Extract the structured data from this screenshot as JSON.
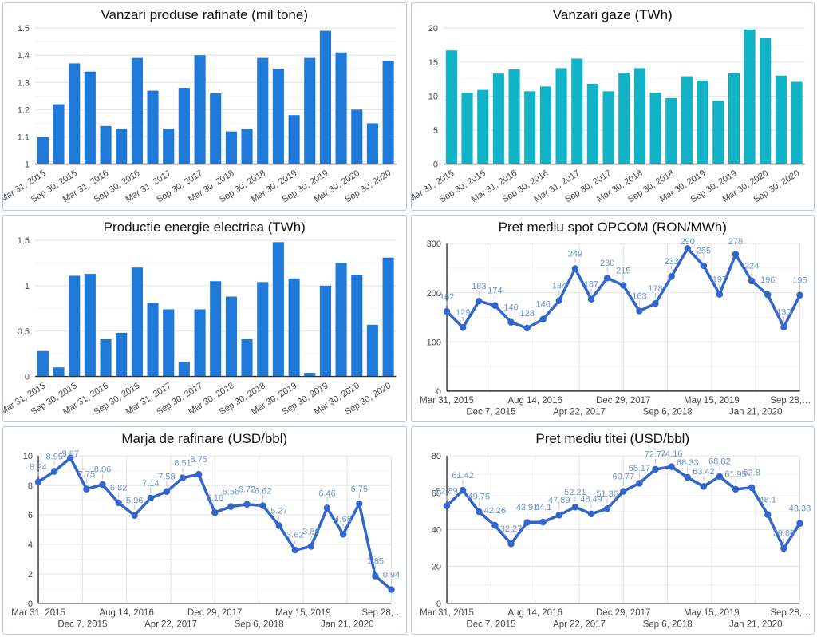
{
  "style": {
    "panel_border": "#bac8da",
    "title_color": "#131313",
    "axis_text": "#45494e",
    "axis_line": "#333333",
    "grid_major": "#e3e3e3",
    "grid_minor": "#f4f4f4",
    "annotation_text": "#6d93c9",
    "annotation_stem": "#b6c6de",
    "bar_blue": "#1e79d9",
    "bar_teal": "#10b4c6",
    "line_blue": "#3366cc"
  },
  "chart_data": [
    {
      "id": "vanzari-produse-rafinate",
      "type": "bar",
      "title": "Vanzari produse rafinate (mil tone)",
      "color": "#1e79d9",
      "ylim": [
        1,
        1.5
      ],
      "y_ticks": [
        "1",
        "1.1",
        "1.2",
        "1.3",
        "1.4",
        "1.5"
      ],
      "grid": true,
      "values": [
        1.1,
        1.22,
        1.37,
        1.34,
        1.14,
        1.13,
        1.39,
        1.27,
        1.13,
        1.28,
        1.4,
        1.26,
        1.12,
        1.13,
        1.39,
        1.35,
        1.18,
        1.39,
        1.49,
        1.41,
        1.2,
        1.15,
        1.38
      ],
      "x_ticks": [
        {
          "index": 0,
          "label": "Mar 31, 2015"
        },
        {
          "index": 2,
          "label": "Sep 30, 2015"
        },
        {
          "index": 4,
          "label": "Mar 31, 2016"
        },
        {
          "index": 6,
          "label": "Sep 30, 2016"
        },
        {
          "index": 8,
          "label": "Mar 31, 2017"
        },
        {
          "index": 10,
          "label": "Sep 30, 2017"
        },
        {
          "index": 12,
          "label": "Mar 30, 2018"
        },
        {
          "index": 14,
          "label": "Sep 30, 2018"
        },
        {
          "index": 16,
          "label": "Mar 30, 2019"
        },
        {
          "index": 18,
          "label": "Sep 30, 2019"
        },
        {
          "index": 20,
          "label": "Mar 30, 2020"
        },
        {
          "index": 22,
          "label": "Sep 30, 2020"
        }
      ]
    },
    {
      "id": "vanzari-gaze",
      "type": "bar",
      "title": "Vanzari gaze (TWh)",
      "color": "#10b4c6",
      "ylim": [
        0,
        20
      ],
      "y_ticks": [
        "0",
        "5",
        "10",
        "15",
        "20"
      ],
      "grid": true,
      "values": [
        16.7,
        10.5,
        10.9,
        13.3,
        13.9,
        10.7,
        11.4,
        14.1,
        15.5,
        11.8,
        10.7,
        13.4,
        14.1,
        10.5,
        9.7,
        12.9,
        12.3,
        9.3,
        13.4,
        19.8,
        18.5,
        13.0,
        12.1
      ],
      "x_ticks": [
        {
          "index": 0,
          "label": "Mar 31, 2015"
        },
        {
          "index": 2,
          "label": "Sep 30, 2015"
        },
        {
          "index": 4,
          "label": "Mar 31, 2016"
        },
        {
          "index": 6,
          "label": "Sep 30, 2016"
        },
        {
          "index": 8,
          "label": "Mar 31, 2017"
        },
        {
          "index": 10,
          "label": "Sep 30, 2017"
        },
        {
          "index": 12,
          "label": "Mar 30, 2018"
        },
        {
          "index": 14,
          "label": "Sep 30, 2018"
        },
        {
          "index": 16,
          "label": "Mar 30, 2019"
        },
        {
          "index": 18,
          "label": "Sep 30, 2019"
        },
        {
          "index": 20,
          "label": "Mar 30, 2020"
        },
        {
          "index": 22,
          "label": "Sep 30, 2020"
        }
      ]
    },
    {
      "id": "productie-energie-electrica",
      "type": "bar",
      "title": "Productie energie electrica (TWh)",
      "color": "#1e79d9",
      "ylim": [
        0,
        1.5
      ],
      "y_ticks": [
        "0",
        "0.5",
        "1",
        "1.5"
      ],
      "grid": true,
      "values": [
        0.28,
        0.1,
        1.11,
        1.13,
        0.41,
        0.48,
        1.2,
        0.81,
        0.74,
        0.16,
        0.74,
        1.05,
        0.88,
        0.41,
        1.04,
        1.48,
        1.08,
        0.04,
        1.0,
        1.25,
        1.12,
        0.57,
        1.31
      ],
      "x_ticks": [
        {
          "index": 0,
          "label": "Mar 31, 2015"
        },
        {
          "index": 2,
          "label": "Sep 30, 2015"
        },
        {
          "index": 4,
          "label": "Mar 31, 2016"
        },
        {
          "index": 6,
          "label": "Sep 30, 2016"
        },
        {
          "index": 8,
          "label": "Mar 31, 2017"
        },
        {
          "index": 10,
          "label": "Sep 30, 2017"
        },
        {
          "index": 12,
          "label": "Mar 30, 2018"
        },
        {
          "index": 14,
          "label": "Sep 30, 2018"
        },
        {
          "index": 16,
          "label": "Mar 30, 2019"
        },
        {
          "index": 18,
          "label": "Sep 30, 2019"
        },
        {
          "index": 20,
          "label": "Mar 30, 2020"
        },
        {
          "index": 22,
          "label": "Sep 30, 2020"
        }
      ]
    },
    {
      "id": "pret-mediu-spot-opcom",
      "type": "line",
      "title": "Pret mediu spot OPCOM (RON/MWh)",
      "color": "#3366cc",
      "ylim": [
        0,
        300
      ],
      "y_ticks": [
        "0",
        "100",
        "200",
        "300"
      ],
      "grid": true,
      "point_labels": true,
      "values": [
        162,
        129,
        183,
        174,
        140,
        128,
        146,
        184,
        249,
        187,
        230,
        215,
        163,
        178,
        233,
        290,
        255,
        197,
        278,
        224,
        196,
        130,
        195
      ],
      "x_ticks": [
        {
          "label": "Mar 31, 2015",
          "row": 0
        },
        {
          "label": "Dec 7, 2015",
          "row": 1
        },
        {
          "label": "Aug 14, 2016",
          "row": 0
        },
        {
          "label": "Apr 22, 2017",
          "row": 1
        },
        {
          "label": "Dec 29, 2017",
          "row": 0
        },
        {
          "label": "Sep 6, 2018",
          "row": 1
        },
        {
          "label": "May 15, 2019",
          "row": 0
        },
        {
          "label": "Jan 21, 2020",
          "row": 1
        },
        {
          "label": "Sep 28,…",
          "row": 0
        }
      ]
    },
    {
      "id": "marja-de-rafinare",
      "type": "line",
      "title": "Marja de rafinare (USD/bbl)",
      "color": "#3366cc",
      "ylim": [
        0,
        10
      ],
      "y_ticks": [
        "0",
        "2",
        "4",
        "6",
        "8",
        "10"
      ],
      "grid": true,
      "point_labels": true,
      "values": [
        8.24,
        8.95,
        9.87,
        7.75,
        8.06,
        6.82,
        5.96,
        7.14,
        7.58,
        8.51,
        8.75,
        6.16,
        6.56,
        6.72,
        6.62,
        5.27,
        3.62,
        3.86,
        6.46,
        4.68,
        6.75,
        1.85,
        0.94
      ],
      "x_ticks": [
        {
          "label": "Mar 31, 2015",
          "row": 0
        },
        {
          "label": "Dec 7, 2015",
          "row": 1
        },
        {
          "label": "Aug 14, 2016",
          "row": 0
        },
        {
          "label": "Apr 22, 2017",
          "row": 1
        },
        {
          "label": "Dec 29, 2017",
          "row": 0
        },
        {
          "label": "Sep 6, 2018",
          "row": 1
        },
        {
          "label": "May 15, 2019",
          "row": 0
        },
        {
          "label": "Jan 21, 2020",
          "row": 1
        },
        {
          "label": "Sep 28,…",
          "row": 0
        }
      ]
    },
    {
      "id": "pret-mediu-titei",
      "type": "line",
      "title": "Pret mediu titei (USD/bbl)",
      "color": "#3366cc",
      "ylim": [
        0,
        80
      ],
      "y_ticks": [
        "0",
        "20",
        "40",
        "60",
        "80"
      ],
      "grid": true,
      "point_labels": true,
      "values": [
        52.89,
        61.42,
        49.75,
        42.26,
        32.27,
        43.91,
        44.1,
        47.89,
        52.21,
        48.49,
        51.36,
        60.77,
        65.17,
        72.74,
        74.16,
        68.33,
        63.42,
        68.82,
        61.95,
        62.8,
        48.1,
        29.86,
        43.38
      ],
      "x_ticks": [
        {
          "label": "Mar 31, 2015",
          "row": 0
        },
        {
          "label": "Dec 7, 2015",
          "row": 1
        },
        {
          "label": "Aug 14, 2016",
          "row": 0
        },
        {
          "label": "Apr 22, 2017",
          "row": 1
        },
        {
          "label": "Dec 29, 2017",
          "row": 0
        },
        {
          "label": "Sep 6, 2018",
          "row": 1
        },
        {
          "label": "May 15, 2019",
          "row": 0
        },
        {
          "label": "Jan 21, 2020",
          "row": 1
        },
        {
          "label": "Sep 28,…",
          "row": 0
        }
      ]
    }
  ]
}
